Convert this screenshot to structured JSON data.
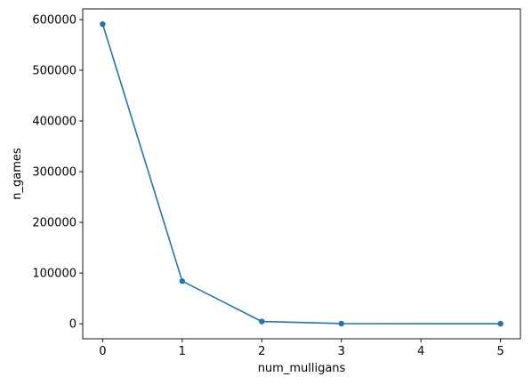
{
  "chart_data": {
    "type": "line",
    "title": "",
    "xlabel": "num_mulligans",
    "ylabel": "n_games",
    "x": [
      0,
      1,
      2,
      3,
      5
    ],
    "series": [
      {
        "values": [
          591000,
          84000,
          4500,
          300,
          100
        ]
      }
    ],
    "xlim": [
      -0.25,
      5.25
    ],
    "ylim": [
      -29600,
      621000
    ],
    "x_ticks": [
      0,
      1,
      2,
      3,
      4,
      5
    ],
    "x_tick_labels": [
      "0",
      "1",
      "2",
      "3",
      "4",
      "5"
    ],
    "y_ticks": [
      0,
      100000,
      200000,
      300000,
      400000,
      500000,
      600000
    ],
    "y_tick_labels": [
      "0",
      "100000",
      "200000",
      "300000",
      "400000",
      "500000",
      "600000"
    ],
    "grid": false,
    "legend": false,
    "line_color": "#1f77b4",
    "markers": true
  }
}
